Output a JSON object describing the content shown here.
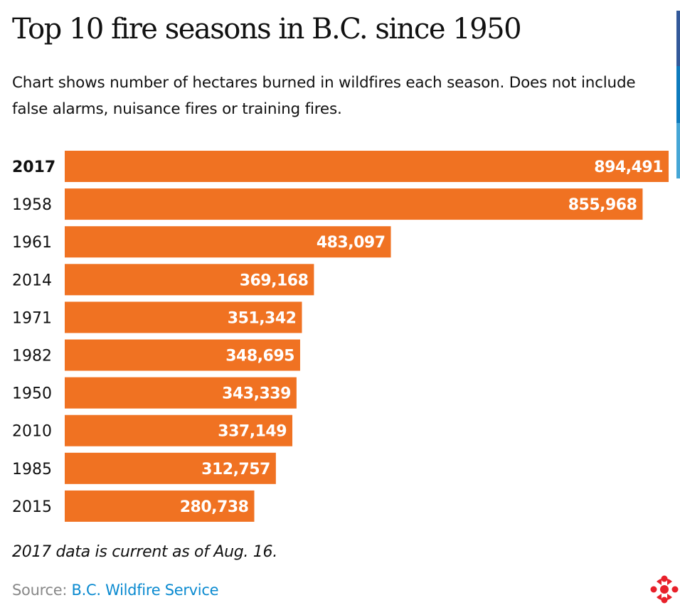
{
  "chart_data": {
    "type": "bar",
    "orientation": "horizontal",
    "title": "Top 10 fire seasons in B.C. since 1950",
    "subtitle": "Chart shows number of hectares burned in wildfires each season. Does not include false alarms, nuisance fires or training fires.",
    "categories": [
      "2017",
      "1958",
      "1961",
      "2014",
      "1971",
      "1982",
      "1950",
      "2010",
      "1985",
      "2015"
    ],
    "values": [
      894491,
      855968,
      483097,
      369168,
      351342,
      348695,
      343339,
      337149,
      312757,
      280738
    ],
    "value_labels": [
      "894,491",
      "855,968",
      "483,097",
      "369,168",
      "351,342",
      "348,695",
      "343,339",
      "337,149",
      "312,757",
      "280,738"
    ],
    "highlighted_category": "2017",
    "bar_color": "#f07222",
    "label_color": "#ffffff",
    "grid": false,
    "xlim": [
      0,
      894491
    ]
  },
  "footer": {
    "note": "2017 data is current as of Aug. 16.",
    "source_label": "Source:",
    "source_link": "B.C. Wildfire Service",
    "link_color": "#0a8ad0",
    "logo": "cbc-gem-logo"
  },
  "accent_stripe_colors": [
    "#33599a",
    "#0e7bbd",
    "#45a6d6"
  ]
}
